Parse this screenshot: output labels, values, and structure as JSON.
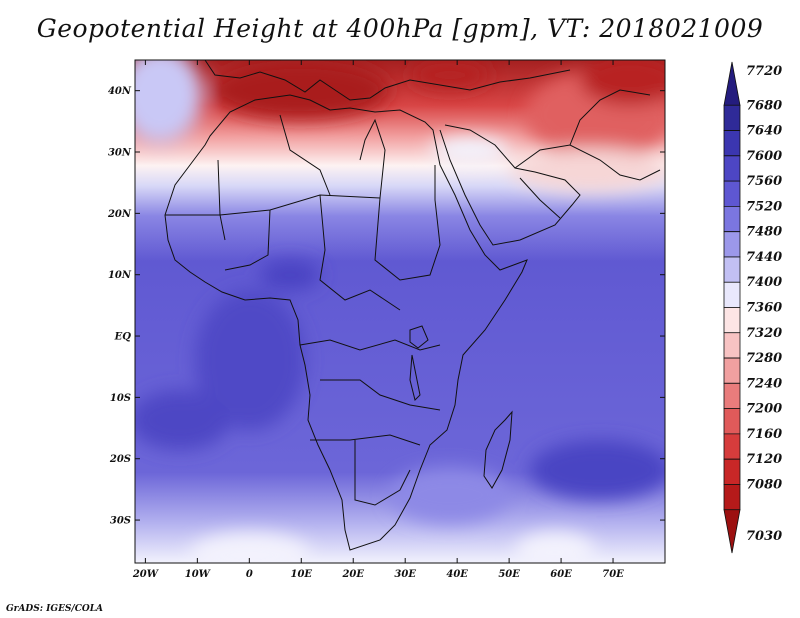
{
  "title": "Geopotential Height at 400hPa [gpm], VT: 2018021009",
  "credit": "GrADS: IGES/COLA",
  "map": {
    "lat_labels": [
      {
        "lat": 40,
        "label": "40N"
      },
      {
        "lat": 30,
        "label": "30N"
      },
      {
        "lat": 20,
        "label": "20N"
      },
      {
        "lat": 10,
        "label": "10N"
      },
      {
        "lat": 0,
        "label": "EQ"
      },
      {
        "lat": -10,
        "label": "10S"
      },
      {
        "lat": -20,
        "label": "20S"
      },
      {
        "lat": -30,
        "label": "30S"
      }
    ],
    "lon_labels": [
      {
        "lon": -20,
        "label": "20W"
      },
      {
        "lon": -10,
        "label": "10W"
      },
      {
        "lon": 0,
        "label": "0"
      },
      {
        "lon": 10,
        "label": "10E"
      },
      {
        "lon": 20,
        "label": "20E"
      },
      {
        "lon": 30,
        "label": "30E"
      },
      {
        "lon": 40,
        "label": "40E"
      },
      {
        "lon": 50,
        "label": "50E"
      },
      {
        "lon": 60,
        "label": "60E"
      },
      {
        "lon": 70,
        "label": "70E"
      }
    ],
    "lon_range": [
      -22,
      80
    ],
    "lat_range": [
      -37,
      45
    ]
  },
  "colorbar": {
    "labels": [
      "7720",
      "7680",
      "7640",
      "7600",
      "7560",
      "7520",
      "7480",
      "7440",
      "7400",
      "7360",
      "7320",
      "7280",
      "7240",
      "7200",
      "7160",
      "7120",
      "7080",
      "7030"
    ],
    "colors": [
      "#241c7e",
      "#2f2a98",
      "#3b36b0",
      "#4d46c4",
      "#5e57d2",
      "#7b76e0",
      "#9c98ea",
      "#c2c0f4",
      "#e9e8fc",
      "#fde5e5",
      "#f8c3c3",
      "#f1a0a0",
      "#e97c7c",
      "#e05a5a",
      "#d63c3c",
      "#c82727",
      "#b51a1a",
      "#9c1010"
    ]
  }
}
